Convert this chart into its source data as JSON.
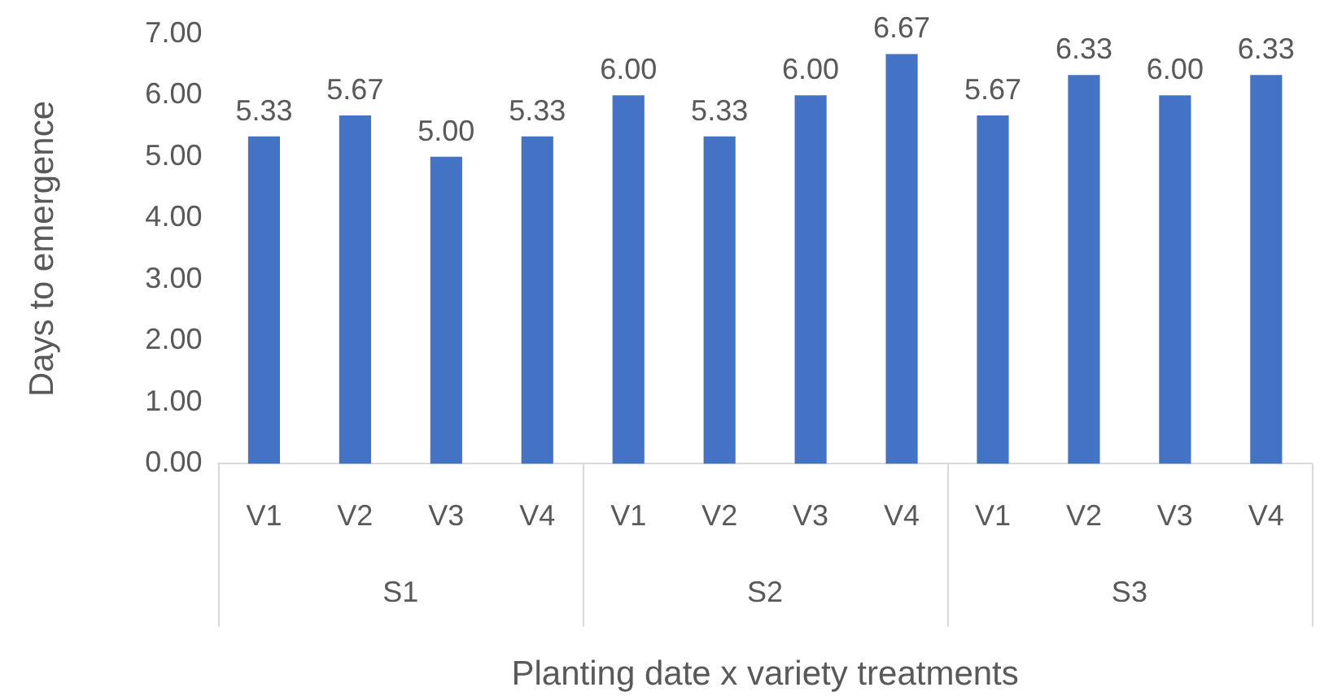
{
  "chart_data": {
    "type": "bar",
    "xlabel": "Planting date x variety treatments",
    "ylabel": "Days to emergence",
    "categories": [
      "V1",
      "V2",
      "V3",
      "V4",
      "V1",
      "V2",
      "V3",
      "V4",
      "V1",
      "V2",
      "V3",
      "V4"
    ],
    "values": [
      5.33,
      5.67,
      5.0,
      5.33,
      6.0,
      5.33,
      6.0,
      6.67,
      5.67,
      6.33,
      6.0,
      6.33
    ],
    "value_labels": [
      "5.33",
      "5.67",
      "5.00",
      "5.33",
      "6.00",
      "5.33",
      "6.00",
      "6.67",
      "5.67",
      "6.33",
      "6.00",
      "6.33"
    ],
    "color": "#4472c4",
    "ylim": [
      0,
      7
    ],
    "yticks": [
      {
        "value": 0,
        "label": "0.00"
      },
      {
        "value": 1,
        "label": "1.00"
      },
      {
        "value": 2,
        "label": "2.00"
      },
      {
        "value": 3,
        "label": "3.00"
      },
      {
        "value": 4,
        "label": "4.00"
      },
      {
        "value": 5,
        "label": "5.00"
      },
      {
        "value": 6,
        "label": "6.00"
      },
      {
        "value": 7,
        "label": "7.00"
      }
    ],
    "annotations": [
      "S1",
      "S2",
      "S3"
    ],
    "grid": false,
    "legend": false
  }
}
